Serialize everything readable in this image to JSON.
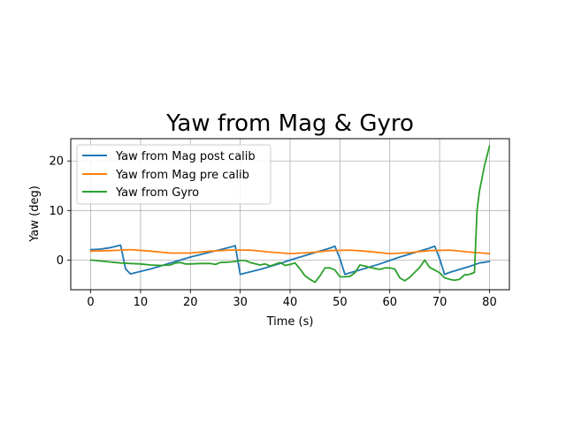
{
  "chart_data": {
    "type": "line",
    "title": "Yaw from Mag & Gyro",
    "xlabel": "Time (s)",
    "ylabel": "Yaw (deg)",
    "xlim": [
      -4,
      84
    ],
    "ylim": [
      -6,
      24.5
    ],
    "xticks": [
      0,
      10,
      20,
      30,
      40,
      50,
      60,
      70,
      80
    ],
    "yticks": [
      0,
      10,
      20
    ],
    "grid": true,
    "legend_position": "upper-left",
    "series": [
      {
        "name": "Yaw from Mag post calib",
        "color": "#1f77b4",
        "x": [
          0,
          2,
          4,
          6,
          7,
          8,
          10,
          12,
          14,
          16,
          18,
          20,
          22,
          24,
          26,
          28,
          29,
          30,
          32,
          34,
          36,
          38,
          40,
          42,
          44,
          46,
          48,
          49,
          50,
          51,
          52,
          54,
          56,
          58,
          60,
          62,
          64,
          66,
          68,
          69,
          70,
          71,
          72,
          74,
          76,
          78,
          80
        ],
        "values": [
          2.1,
          2.2,
          2.5,
          3.0,
          -1.8,
          -2.8,
          -2.3,
          -1.8,
          -1.2,
          -0.6,
          0.0,
          0.6,
          1.1,
          1.6,
          2.1,
          2.6,
          2.9,
          -2.9,
          -2.4,
          -1.9,
          -1.3,
          -0.7,
          0.0,
          0.6,
          1.2,
          1.8,
          2.4,
          2.8,
          0.3,
          -2.9,
          -2.6,
          -2.0,
          -1.4,
          -0.8,
          -0.1,
          0.6,
          1.2,
          1.8,
          2.4,
          2.8,
          0.3,
          -2.9,
          -2.5,
          -1.9,
          -1.3,
          -0.6,
          -0.3
        ]
      },
      {
        "name": "Yaw from Mag pre calib",
        "color": "#ff7f0e",
        "x": [
          0,
          4,
          8,
          12,
          16,
          20,
          24,
          28,
          32,
          36,
          40,
          44,
          48,
          52,
          56,
          60,
          64,
          68,
          72,
          76,
          80
        ],
        "values": [
          1.8,
          1.9,
          2.1,
          1.8,
          1.4,
          1.4,
          1.8,
          2.0,
          2.0,
          1.6,
          1.3,
          1.5,
          1.9,
          2.0,
          1.7,
          1.3,
          1.5,
          1.9,
          2.0,
          1.6,
          1.3
        ]
      },
      {
        "name": "Yaw from Gyro",
        "color": "#2ca02c",
        "x": [
          0,
          2,
          4,
          6,
          8,
          10,
          12,
          14,
          16,
          17,
          18,
          19,
          20,
          22,
          24,
          25,
          26,
          28,
          29,
          30,
          31,
          32,
          34,
          35,
          36,
          38,
          39,
          40,
          41,
          42,
          43,
          44,
          45,
          46,
          47,
          48,
          49,
          50,
          51,
          52,
          53,
          54,
          55,
          56,
          57,
          58,
          59,
          60,
          61,
          62,
          63,
          64,
          65,
          66,
          67,
          68,
          69,
          70,
          71,
          72,
          73,
          74,
          75,
          76,
          77,
          77.5,
          78,
          79,
          80
        ],
        "values": [
          0.0,
          -0.2,
          -0.4,
          -0.6,
          -0.7,
          -0.8,
          -1.0,
          -1.1,
          -1.0,
          -0.6,
          -0.5,
          -0.8,
          -0.8,
          -0.7,
          -0.7,
          -0.9,
          -0.5,
          -0.4,
          -0.3,
          -0.1,
          -0.1,
          -0.5,
          -1.0,
          -0.8,
          -1.2,
          -0.5,
          -1.1,
          -0.9,
          -0.6,
          -1.8,
          -3.2,
          -3.9,
          -4.5,
          -3.2,
          -1.6,
          -1.6,
          -2.0,
          -3.4,
          -3.4,
          -3.3,
          -2.6,
          -1.0,
          -1.2,
          -1.5,
          -1.7,
          -1.9,
          -1.6,
          -1.6,
          -1.8,
          -3.6,
          -4.2,
          -3.5,
          -2.5,
          -1.5,
          0.0,
          -1.5,
          -2.0,
          -2.6,
          -3.6,
          -3.9,
          -4.1,
          -3.9,
          -3.0,
          -2.9,
          -2.5,
          10.0,
          14.0,
          19.0,
          23.0
        ]
      }
    ]
  }
}
